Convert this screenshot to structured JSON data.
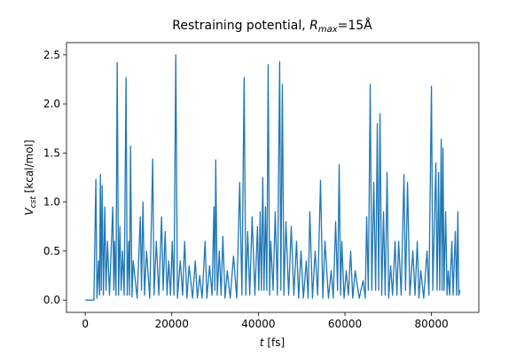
{
  "chart_data": {
    "type": "line",
    "title": {
      "text": "Restraining potential, ",
      "symbol": "R",
      "subscript": "max",
      "suffix": "=15Å"
    },
    "x_label": {
      "symbol": "t",
      "suffix": " [fs]"
    },
    "y_label": {
      "symbol": "V",
      "subscript": "cst",
      "suffix": " [kcal/mol]"
    },
    "color": "#1f77b4",
    "xlim": [
      -4330,
      90930
    ],
    "ylim": [
      -0.125,
      2.625
    ],
    "xticks": [
      0,
      20000,
      40000,
      60000,
      80000
    ],
    "yticks": [
      {
        "value": 0,
        "label": "0.0"
      },
      0.5,
      {
        "value": 1,
        "label": "1.0"
      },
      1.5,
      {
        "value": 2,
        "label": "2.0"
      },
      2.5
    ],
    "x": [
      0,
      2000,
      2460,
      2700,
      3080,
      3300,
      3490,
      3700,
      3900,
      4200,
      4510,
      4800,
      5130,
      5600,
      6360,
      6600,
      6770,
      7100,
      7380,
      7700,
      8000,
      8300,
      8620,
      9000,
      9430,
      9700,
      10050,
      10250,
      10460,
      10800,
      11080,
      12000,
      12720,
      13000,
      13330,
      13700,
      14150,
      14900,
      15590,
      15900,
      16410,
      17000,
      17640,
      18000,
      18460,
      18900,
      19280,
      19700,
      20100,
      20500,
      20920,
      21300,
      21950,
      22500,
      22970,
      23500,
      24000,
      24800,
      25430,
      25900,
      26460,
      27000,
      27690,
      28100,
      28720,
      29300,
      29740,
      29950,
      30150,
      30500,
      30970,
      31400,
      31790,
      32300,
      32820,
      33500,
      34260,
      35000,
      35690,
      36200,
      36710,
      37100,
      37530,
      38000,
      38560,
      39200,
      39790,
      40100,
      40410,
      40700,
      41020,
      41300,
      41640,
      41950,
      42260,
      42600,
      42870,
      43400,
      43900,
      44400,
      44920,
      45200,
      45540,
      45900,
      46360,
      47000,
      47590,
      48200,
      48820,
      49300,
      49850,
      50400,
      51070,
      51500,
      51890,
      52500,
      53120,
      53700,
      54360,
      54900,
      55380,
      56200,
      56820,
      57300,
      57850,
      58300,
      58670,
      59000,
      59280,
      59800,
      60310,
      60800,
      61330,
      61800,
      62360,
      63300,
      64200,
      64700,
      65020,
      65400,
      65840,
      66200,
      66660,
      67100,
      67480,
      67800,
      68100,
      68500,
      68920,
      69300,
      69740,
      70100,
      70560,
      71000,
      71590,
      72000,
      72410,
      73000,
      73640,
      74000,
      74460,
      75000,
      75690,
      76200,
      76710,
      77100,
      77530,
      78200,
      78970,
      79400,
      79990,
      80300,
      81010,
      81300,
      81630,
      81900,
      82240,
      82450,
      82650,
      82900,
      83270,
      83600,
      83880,
      84200,
      84700,
      85000,
      85500,
      85800,
      86100,
      86300,
      86600
    ],
    "values": [
      0,
      0,
      1.23,
      0.02,
      0.4,
      0.05,
      1.28,
      0.1,
      1.17,
      0.05,
      0.95,
      0.1,
      0.6,
      0.05,
      0.95,
      0.1,
      0.6,
      0.05,
      2.42,
      0.05,
      0.75,
      0.1,
      0.5,
      0.05,
      2.27,
      0.05,
      0.6,
      0.05,
      1.57,
      0.03,
      0.4,
      0.02,
      0.85,
      0.1,
      1.0,
      0.05,
      0.5,
      0.02,
      1.44,
      0.05,
      0.6,
      0.05,
      0.85,
      0.1,
      0.7,
      0.05,
      0.4,
      0.05,
      0.6,
      0.05,
      2.5,
      0.02,
      0.4,
      0.05,
      0.6,
      0.02,
      0.35,
      0.02,
      0.4,
      0.02,
      0.25,
      0.02,
      0.6,
      0.02,
      0.35,
      0.05,
      0.95,
      0.1,
      1.43,
      0.05,
      0.5,
      0.05,
      0.65,
      0.02,
      0.3,
      0.02,
      0.45,
      0.02,
      1.2,
      0.05,
      2.27,
      0.05,
      0.7,
      0.05,
      0.85,
      0.05,
      0.75,
      0.1,
      0.9,
      0.1,
      1.25,
      0.1,
      0.95,
      0.1,
      2.4,
      0.05,
      0.6,
      0.1,
      0.9,
      0.05,
      2.43,
      0.1,
      2.2,
      0.05,
      0.8,
      0.05,
      0.75,
      0.05,
      0.6,
      0.02,
      0.5,
      0.02,
      0.4,
      0.02,
      0.9,
      0.02,
      0.5,
      0.05,
      1.22,
      0.02,
      0.6,
      0.02,
      0.3,
      0.02,
      0.8,
      0.1,
      1.38,
      0.05,
      0.6,
      0.02,
      0.3,
      0.05,
      0.5,
      0.02,
      0.3,
      0.02,
      0.2,
      0.02,
      0.85,
      0.1,
      2.2,
      0.1,
      1.2,
      0.1,
      1.8,
      0.1,
      1.9,
      0.05,
      0.9,
      0.05,
      1.3,
      0.02,
      0.35,
      0.05,
      0.6,
      0.05,
      0.6,
      0.05,
      1.28,
      0.1,
      1.2,
      0.05,
      0.5,
      0.05,
      0.6,
      0.02,
      0.3,
      0.02,
      0.5,
      0.05,
      2.18,
      0.1,
      1.4,
      0.1,
      1.3,
      0.1,
      1.64,
      0.1,
      1.55,
      0.1,
      0.9,
      0.05,
      0.3,
      0.05,
      0.6,
      0.05,
      0.7,
      0.05,
      0.9,
      0.05,
      0.1
    ]
  }
}
